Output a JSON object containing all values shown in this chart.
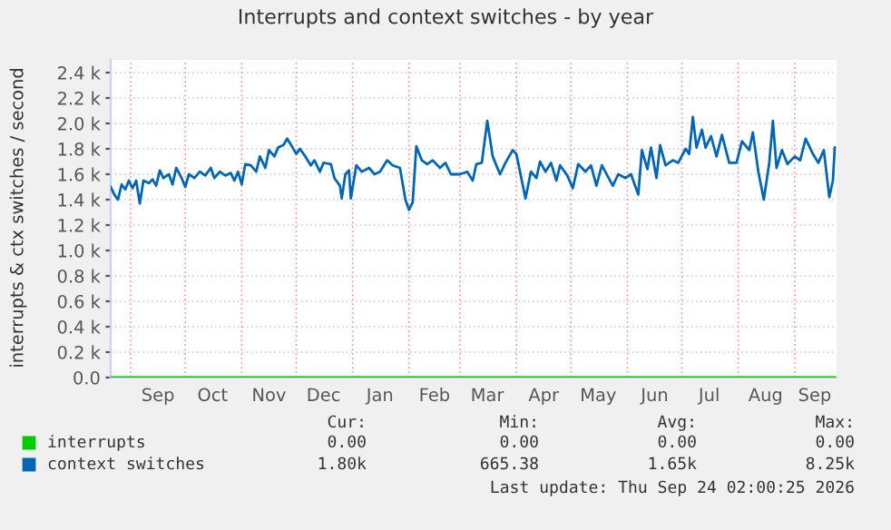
{
  "chart_data": {
    "type": "line",
    "title": "Interrupts and context switches - by year",
    "ylabel": "interrupts & ctx switches / second",
    "xlim": [
      "2025-08-21",
      "2026-09-24"
    ],
    "ylim": [
      0,
      2500
    ],
    "xticks": [
      {
        "value": "2025-09-01",
        "label": null
      },
      {
        "value": "2025-09-16",
        "label": "Sep"
      },
      {
        "value": "2025-10-01",
        "label": null
      },
      {
        "value": "2025-10-16",
        "label": "Oct"
      },
      {
        "value": "2025-11-01",
        "label": null
      },
      {
        "value": "2025-11-16",
        "label": "Nov"
      },
      {
        "value": "2025-12-01",
        "label": null
      },
      {
        "value": "2025-12-16",
        "label": "Dec"
      },
      {
        "value": "2026-01-01",
        "label": null
      },
      {
        "value": "2026-01-16",
        "label": "Jan"
      },
      {
        "value": "2026-02-01",
        "label": null
      },
      {
        "value": "2026-02-15",
        "label": "Feb"
      },
      {
        "value": "2026-03-01",
        "label": null
      },
      {
        "value": "2026-03-16",
        "label": "Mar"
      },
      {
        "value": "2026-04-01",
        "label": null
      },
      {
        "value": "2026-04-16",
        "label": "Apr"
      },
      {
        "value": "2026-05-01",
        "label": null
      },
      {
        "value": "2026-05-16",
        "label": "May"
      },
      {
        "value": "2026-06-01",
        "label": null
      },
      {
        "value": "2026-06-16",
        "label": "Jun"
      },
      {
        "value": "2026-07-01",
        "label": null
      },
      {
        "value": "2026-07-16",
        "label": "Jul"
      },
      {
        "value": "2026-08-01",
        "label": null
      },
      {
        "value": "2026-08-16",
        "label": "Aug"
      },
      {
        "value": "2026-09-01",
        "label": null
      },
      {
        "value": "2026-09-12",
        "label": "Sep"
      }
    ],
    "yticks": [
      {
        "value": 0,
        "label": "0.0"
      },
      {
        "value": 200,
        "label": "0.2 k"
      },
      {
        "value": 400,
        "label": "0.4 k"
      },
      {
        "value": 600,
        "label": "0.6 k"
      },
      {
        "value": 800,
        "label": "0.8 k"
      },
      {
        "value": 1000,
        "label": "1.0 k"
      },
      {
        "value": 1200,
        "label": "1.2 k"
      },
      {
        "value": 1400,
        "label": "1.4 k"
      },
      {
        "value": 1600,
        "label": "1.6 k"
      },
      {
        "value": 1800,
        "label": "1.8 k"
      },
      {
        "value": 2000,
        "label": "2.0 k"
      },
      {
        "value": 2200,
        "label": "2.2 k"
      },
      {
        "value": 2400,
        "label": "2.4 k"
      }
    ],
    "grid": true,
    "legend": "bottom",
    "marker": "none",
    "line_style": "solid",
    "series": [
      {
        "name": "interrupts",
        "color": "#00cc00",
        "x": [
          "2025-08-21",
          "2026-09-23"
        ],
        "values": [
          0,
          0
        ]
      },
      {
        "name": "context switches",
        "color": "#0066b3",
        "x": [
          "2025-08-21",
          "2025-08-23",
          "2025-08-25",
          "2025-08-27",
          "2025-08-29",
          "2025-08-31",
          "2025-09-02",
          "2025-09-04",
          "2025-09-06",
          "2025-09-08",
          "2025-09-11",
          "2025-09-13",
          "2025-09-15",
          "2025-09-17",
          "2025-09-19",
          "2025-09-22",
          "2025-09-24",
          "2025-09-26",
          "2025-09-29",
          "2025-10-01",
          "2025-10-03",
          "2025-10-06",
          "2025-10-09",
          "2025-10-12",
          "2025-10-15",
          "2025-10-17",
          "2025-10-20",
          "2025-10-23",
          "2025-10-26",
          "2025-10-28",
          "2025-10-30",
          "2025-11-01",
          "2025-11-03",
          "2025-11-06",
          "2025-11-09",
          "2025-11-11",
          "2025-11-14",
          "2025-11-16",
          "2025-11-19",
          "2025-11-21",
          "2025-11-24",
          "2025-11-26",
          "2025-11-29",
          "2025-12-01",
          "2025-12-03",
          "2025-12-06",
          "2025-12-09",
          "2025-12-11",
          "2025-12-14",
          "2025-12-16",
          "2025-12-20",
          "2025-12-22",
          "2025-12-25",
          "2025-12-26",
          "2025-12-28",
          "2025-12-30",
          "2025-12-31",
          "2026-01-03",
          "2026-01-06",
          "2026-01-10",
          "2026-01-13",
          "2026-01-16",
          "2026-01-20",
          "2026-01-23",
          "2026-01-27",
          "2026-01-30",
          "2026-02-01",
          "2026-02-03",
          "2026-02-05",
          "2026-02-08",
          "2026-02-11",
          "2026-02-14",
          "2026-02-18",
          "2026-02-21",
          "2026-02-24",
          "2026-03-01",
          "2026-03-05",
          "2026-03-08",
          "2026-03-10",
          "2026-03-13",
          "2026-03-16",
          "2026-03-19",
          "2026-03-23",
          "2026-03-26",
          "2026-03-30",
          "2026-04-01",
          "2026-04-04",
          "2026-04-06",
          "2026-04-09",
          "2026-04-12",
          "2026-04-14",
          "2026-04-17",
          "2026-04-20",
          "2026-04-23",
          "2026-04-25",
          "2026-04-29",
          "2026-05-02",
          "2026-05-05",
          "2026-05-09",
          "2026-05-12",
          "2026-05-15",
          "2026-05-18",
          "2026-05-21",
          "2026-05-24",
          "2026-05-27",
          "2026-05-31",
          "2026-06-03",
          "2026-06-07",
          "2026-06-09",
          "2026-06-12",
          "2026-06-14",
          "2026-06-17",
          "2026-06-19",
          "2026-06-22",
          "2026-06-26",
          "2026-06-29",
          "2026-07-03",
          "2026-07-05",
          "2026-07-07",
          "2026-07-09",
          "2026-07-12",
          "2026-07-14",
          "2026-07-17",
          "2026-07-20",
          "2026-07-23",
          "2026-07-27",
          "2026-07-31",
          "2026-08-03",
          "2026-08-07",
          "2026-08-09",
          "2026-08-12",
          "2026-08-15",
          "2026-08-18",
          "2026-08-20",
          "2026-08-22",
          "2026-08-25",
          "2026-08-28",
          "2026-09-01",
          "2026-09-04",
          "2026-09-07",
          "2026-09-11",
          "2026-09-14",
          "2026-09-17",
          "2026-09-20",
          "2026-09-22",
          "2026-09-23"
        ],
        "values": [
          1500,
          1440,
          1400,
          1520,
          1480,
          1550,
          1490,
          1550,
          1370,
          1550,
          1530,
          1560,
          1510,
          1630,
          1570,
          1600,
          1520,
          1650,
          1570,
          1500,
          1600,
          1570,
          1620,
          1590,
          1650,
          1570,
          1620,
          1590,
          1610,
          1550,
          1620,
          1520,
          1680,
          1670,
          1620,
          1740,
          1650,
          1790,
          1740,
          1810,
          1830,
          1880,
          1810,
          1760,
          1800,
          1740,
          1670,
          1710,
          1620,
          1690,
          1680,
          1570,
          1510,
          1410,
          1600,
          1630,
          1410,
          1670,
          1620,
          1650,
          1600,
          1620,
          1710,
          1670,
          1650,
          1400,
          1320,
          1380,
          1820,
          1710,
          1680,
          1710,
          1650,
          1690,
          1600,
          1600,
          1620,
          1550,
          1680,
          1690,
          2020,
          1740,
          1600,
          1690,
          1790,
          1760,
          1550,
          1410,
          1620,
          1570,
          1700,
          1620,
          1690,
          1550,
          1670,
          1590,
          1490,
          1680,
          1620,
          1670,
          1510,
          1670,
          1590,
          1510,
          1600,
          1570,
          1600,
          1440,
          1790,
          1640,
          1810,
          1570,
          1830,
          1670,
          1710,
          1690,
          1800,
          1760,
          2050,
          1810,
          1950,
          1810,
          1900,
          1740,
          1910,
          1690,
          1690,
          1860,
          1790,
          1930,
          1620,
          1400,
          1690,
          2020,
          1650,
          1790,
          1680,
          1740,
          1710,
          1880,
          1760,
          1690,
          1790,
          1420,
          1550,
          1810
        ]
      }
    ],
    "annotations": [
      "Cur:",
      "Min:",
      "Avg:",
      "Max:",
      "0.00",
      "0.00",
      "0.00",
      "0.00",
      "1.80k",
      "665.38",
      "1.65k",
      "8.25k",
      "Last update: Thu Sep 24 02:00:25 2026"
    ]
  }
}
